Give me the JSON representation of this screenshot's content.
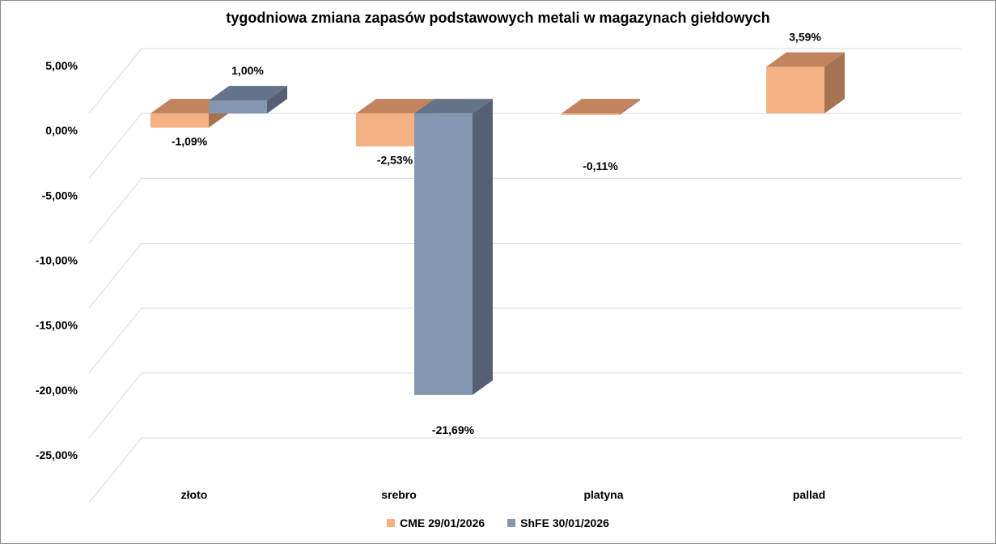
{
  "chart_data": {
    "type": "bar",
    "title": "tygodniowa zmiana zapasów podstawowych metali w magazynach giełdowych",
    "categories": [
      "złoto",
      "srebro",
      "platyna",
      "pallad"
    ],
    "series": [
      {
        "name": "CME 29/01/2026",
        "values": [
          -1.09,
          -2.53,
          -0.11,
          3.59
        ],
        "labels": [
          "-1,09%",
          "-2,53%",
          "-0,11%",
          "3,59%"
        ],
        "color": "#F4B183",
        "side_color": "#A47352",
        "top_color": "#C3835E"
      },
      {
        "name": "ShFE 30/01/2026",
        "values": [
          1.0,
          -21.69,
          null,
          null
        ],
        "labels": [
          "1,00%",
          "-21,69%",
          null,
          null
        ],
        "color": "#8497B0",
        "side_color": "#556173",
        "top_color": "#647389"
      }
    ],
    "ylim": [
      -25,
      5
    ],
    "yticks": [
      5,
      0,
      -5,
      -10,
      -15,
      -20,
      -25
    ],
    "ytick_labels": [
      "5,00%",
      "0,00%",
      "-5,00%",
      "-10,00%",
      "-15,00%",
      "-20,00%",
      "-25,00%"
    ],
    "grid": true,
    "legend_position": "bottom"
  }
}
